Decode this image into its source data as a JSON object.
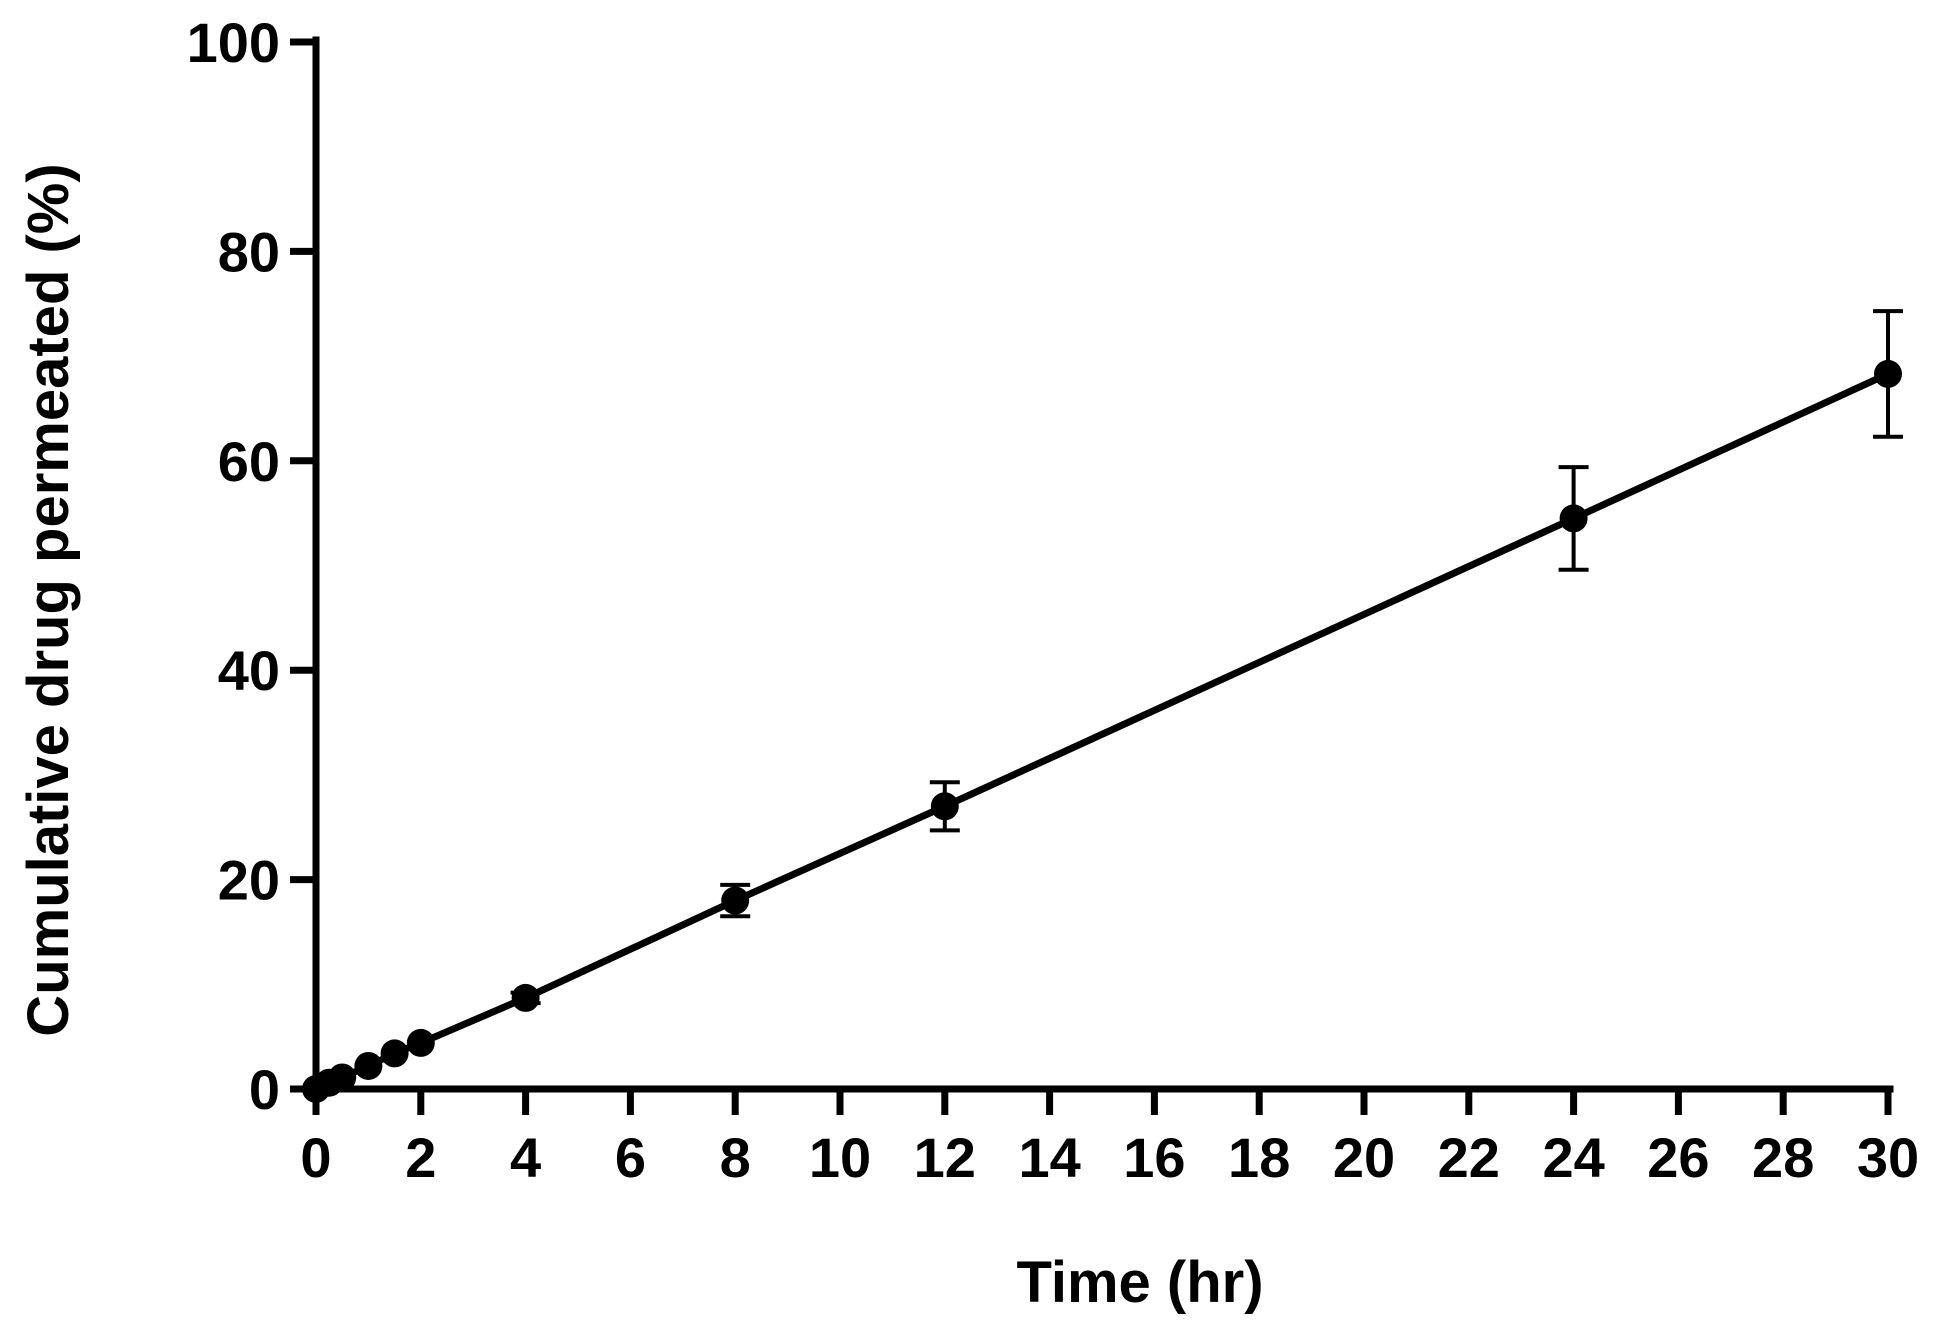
{
  "chart_data": {
    "type": "line",
    "title": "",
    "xlabel": "Time (hr)",
    "ylabel": "Cumulative drug permeated (%)",
    "xlim": [
      0,
      30
    ],
    "ylim": [
      0,
      100
    ],
    "x_ticks": [
      0,
      2,
      4,
      6,
      8,
      10,
      12,
      14,
      16,
      18,
      20,
      22,
      24,
      26,
      28,
      30
    ],
    "y_ticks": [
      0,
      20,
      40,
      60,
      80,
      100
    ],
    "grid": false,
    "legend": "none",
    "series": [
      {
        "x": [
          0,
          0.25,
          0.5,
          1,
          1.5,
          2,
          4,
          8,
          12,
          24,
          30
        ],
        "y": [
          0,
          0.6,
          1.1,
          2.2,
          3.4,
          4.4,
          8.7,
          18,
          27,
          54.5,
          68.3
        ],
        "error": [
          0,
          0,
          0,
          0,
          0,
          0,
          0.5,
          1.5,
          2.3,
          4.9,
          6.0
        ],
        "color": "#000000",
        "marker": "circle"
      }
    ]
  }
}
